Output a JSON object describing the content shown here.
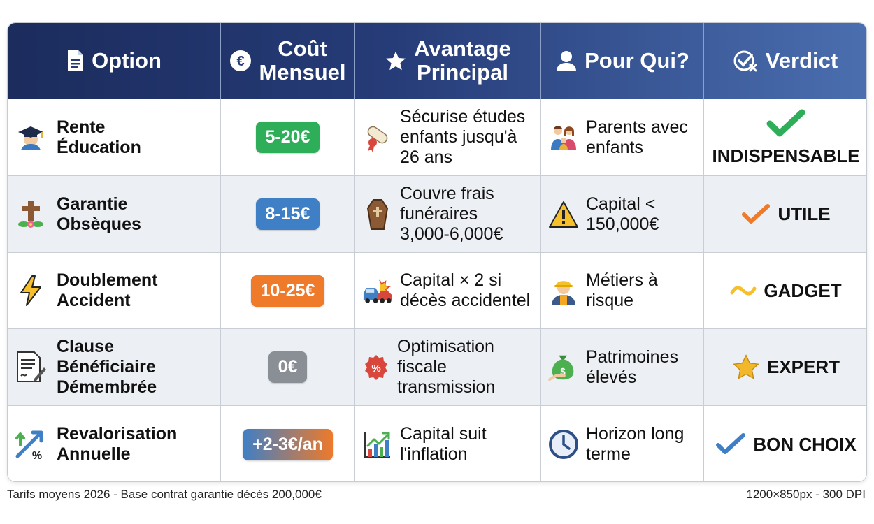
{
  "header": {
    "option": "Option",
    "cost": "Coût\nMensuel",
    "advantage": "Avantage\nPrincipal",
    "who": "Pour Qui?",
    "verdict": "Verdict"
  },
  "rows": [
    {
      "option": "Rente\nÉducation",
      "option_icon": "graduate-icon",
      "cost": "5-20€",
      "cost_color": "#2fae5a",
      "advantage": "Sécurise études\nenfants jusqu'à\n26 ans",
      "advantage_icon": "diploma-icon",
      "who": "Parents avec\nenfants",
      "who_icon": "family-icon",
      "verdict": "INDISPENSABLE",
      "verdict_icon": "check-green-icon"
    },
    {
      "option": "Garantie\nObsèques",
      "option_icon": "cross-flower-icon",
      "cost": "8-15€",
      "cost_color": "#3f7fc6",
      "advantage": "Couvre frais\nfunéraires\n3,000-6,000€",
      "advantage_icon": "coffin-icon",
      "who": "Capital <\n150,000€",
      "who_icon": "warning-icon",
      "verdict": "UTILE",
      "verdict_icon": "check-orange-icon"
    },
    {
      "option": "Doublement\nAccident",
      "option_icon": "lightning-icon",
      "cost": "10-25€",
      "cost_color": "#ee7a2a",
      "advantage": "Capital × 2 si\ndécès accidentel",
      "advantage_icon": "car-crash-icon",
      "who": "Métiers à\nrisque",
      "who_icon": "worker-icon",
      "verdict": "GADGET",
      "verdict_icon": "tilde-icon"
    },
    {
      "option": "Clause\nBénéficiaire\nDémembrée",
      "option_icon": "document-pen-icon",
      "cost": "0€",
      "cost_color": "#8a8f96",
      "advantage": "Optimisation\nfiscale transmission",
      "advantage_icon": "percent-badge-icon",
      "who": "Patrimoines\nélevés",
      "who_icon": "money-bag-icon",
      "verdict": "EXPERT",
      "verdict_icon": "star-icon"
    },
    {
      "option": "Revalorisation\nAnnuelle",
      "option_icon": "growth-percent-icon",
      "cost": "+2-3€/an",
      "cost_color": "#3f7fc6",
      "cost_color2": "#ee7a2a",
      "advantage": "Capital suit\nl'inflation",
      "advantage_icon": "chart-up-icon",
      "who": "Horizon long\nterme",
      "who_icon": "clock-icon",
      "verdict": "BON CHOIX",
      "verdict_icon": "check-blue-icon"
    }
  ],
  "footer": {
    "left": "Tarifs moyens 2026 - Base contrat garantie décès 200,000€",
    "right": "1200×850px - 300 DPI"
  }
}
